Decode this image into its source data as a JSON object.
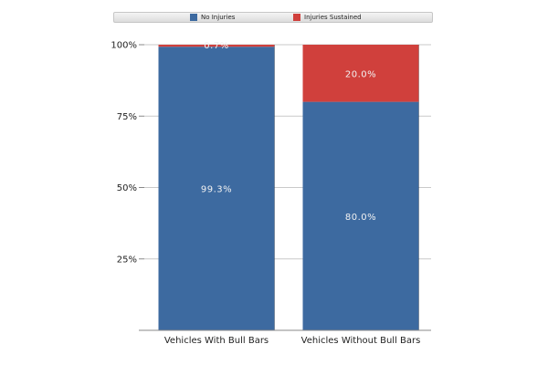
{
  "chart_data": {
    "type": "bar",
    "stacked": true,
    "categories": [
      "Vehicles With Bull Bars",
      "Vehicles Without Bull Bars"
    ],
    "series": [
      {
        "name": "No Injuries",
        "color": "#3d6aa0",
        "values": [
          99.3,
          80.0
        ],
        "labels": [
          "99.3%",
          "80.0%"
        ]
      },
      {
        "name": "Injuries Sustained",
        "color": "#d0403c",
        "values": [
          0.7,
          20.0
        ],
        "labels": [
          "0.7%",
          "20.0%"
        ]
      }
    ],
    "yticks": [
      "100%",
      "75%",
      "50%",
      "25%",
      ""
    ],
    "ylim": [
      0,
      100
    ],
    "grid": true,
    "legend_position": "top"
  }
}
